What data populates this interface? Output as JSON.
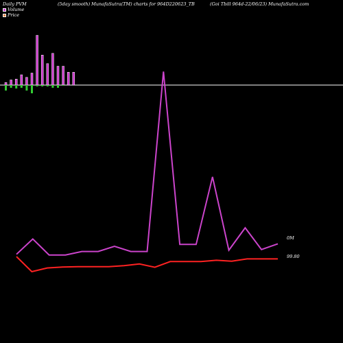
{
  "header": {
    "left": "Daily PVM",
    "middle": "(5day smooth) MunafaSutra(TM) charts for 964D220623_TB",
    "right": "(Goi  Tbill 964d-22/06/23) MunafaSutra.com"
  },
  "legend": {
    "volume": "Volume",
    "price": "Price"
  },
  "colors": {
    "background": "#000000",
    "volume_bar": "#cc33cc",
    "volume_neg": "#33cc33",
    "volume_line": "#cc44cc",
    "price_line": "#ff2222",
    "zero_line": "#ffffff",
    "legend_volume": "#cc33cc",
    "legend_price": "#e08040"
  },
  "chart_data": {
    "type": "line",
    "title": "(5day smooth) MunafaSutra(TM) charts for 964D220623_TB",
    "axis_labels": {
      "volume": "0M",
      "price": "99.80"
    },
    "volume_bars": {
      "up": [
        3,
        6,
        7,
        12,
        9,
        14,
        58,
        35,
        25,
        37,
        22,
        22,
        15,
        15
      ],
      "down": [
        8,
        4,
        5,
        4,
        8,
        12,
        2,
        2,
        2,
        4,
        4,
        1
      ]
    },
    "series": [
      {
        "key": "volume",
        "values": [
          0.7,
          5.5,
          0.5,
          0.5,
          1.6,
          1.6,
          3.2,
          1.6,
          1.6,
          58,
          3.8,
          3.8,
          25,
          2,
          9,
          2.2,
          4
        ]
      },
      {
        "key": "price",
        "values": [
          99.8,
          99.35,
          99.46,
          99.49,
          99.5,
          99.5,
          99.5,
          99.53,
          99.58,
          99.48,
          99.65,
          99.65,
          99.65,
          99.69,
          99.66,
          99.73,
          99.73,
          99.73
        ]
      }
    ]
  }
}
